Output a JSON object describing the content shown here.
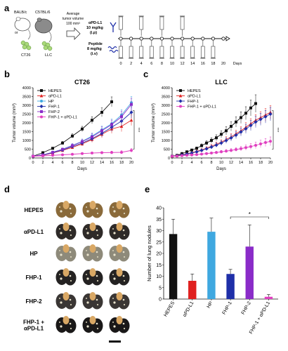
{
  "panel_labels": [
    "a",
    "b",
    "c",
    "d",
    "e"
  ],
  "schema": {
    "mouse_strain_1": "BALB/c",
    "or_text": "or",
    "mouse_strain_2": "C57BL/6",
    "cell_line_1": "CT26",
    "cell_line_2": "LLC",
    "avg_text_1": "Average",
    "avg_text_2": "tumor volume",
    "avg_text_3": "100 mm³",
    "antibody_label_1": "αPD-L1",
    "antibody_label_2": "10 mg/kg",
    "antibody_label_3": "(i.p)",
    "peptide_label_1": "Peptide",
    "peptide_label_2": "8 mg/kg",
    "peptide_label_3": "(i.v)",
    "timeline_ticks": [
      "0",
      "2",
      "4",
      "6",
      "8",
      "10",
      "12",
      "14",
      "16",
      "18",
      "20"
    ],
    "timeline_unit": "Days",
    "antibody_days": [
      0,
      4,
      8,
      12
    ],
    "peptide_days": [
      0,
      2,
      4,
      6,
      8,
      10,
      12,
      14,
      16,
      18
    ]
  },
  "chart_data": [
    {
      "type": "line",
      "title": "CT26",
      "xlabel": "Days",
      "ylabel": "Tumor volume (mm³)",
      "xlim": [
        0,
        20
      ],
      "ylim": [
        0,
        4000
      ],
      "xticks": [
        "0",
        "2",
        "4",
        "6",
        "8",
        "10",
        "12",
        "14",
        "16",
        "18",
        "20"
      ],
      "yticks": [
        "0",
        "500",
        "1000",
        "1500",
        "2000",
        "2500",
        "3000",
        "3500",
        "4000"
      ],
      "legend_position": "top-left",
      "significance": "***",
      "series": [
        {
          "name": "HEPES",
          "color": "#111111",
          "marker": "square",
          "x": [
            0,
            2,
            4,
            6,
            8,
            10,
            12,
            14,
            16
          ],
          "y": [
            100,
            300,
            550,
            850,
            1250,
            1650,
            2150,
            2600,
            3200
          ],
          "err": [
            20,
            40,
            60,
            90,
            120,
            150,
            200,
            250,
            280
          ]
        },
        {
          "name": "αPD-L1",
          "color": "#e0201f",
          "marker": "triangle",
          "x": [
            0,
            2,
            4,
            6,
            8,
            10,
            12,
            14,
            16,
            18,
            20
          ],
          "y": [
            100,
            150,
            280,
            430,
            600,
            800,
            1050,
            1350,
            1650,
            1800,
            2150
          ],
          "err": [
            20,
            30,
            40,
            60,
            80,
            120,
            160,
            200,
            250,
            300,
            300
          ]
        },
        {
          "name": "HP",
          "color": "#3fa8e0",
          "marker": "circle",
          "x": [
            0,
            2,
            4,
            6,
            8,
            10,
            12,
            14,
            16,
            18,
            20
          ],
          "y": [
            100,
            180,
            330,
            500,
            720,
            950,
            1250,
            1600,
            1950,
            2450,
            3150
          ],
          "err": [
            20,
            30,
            50,
            70,
            100,
            130,
            170,
            210,
            260,
            300,
            350
          ]
        },
        {
          "name": "FHP-1",
          "color": "#1f2fa8",
          "marker": "diamond",
          "x": [
            0,
            2,
            4,
            6,
            8,
            10,
            12,
            14,
            16,
            18,
            20
          ],
          "y": [
            100,
            160,
            300,
            450,
            650,
            850,
            1100,
            1400,
            1750,
            2100,
            2600
          ],
          "err": [
            20,
            30,
            40,
            60,
            90,
            120,
            160,
            200,
            240,
            280,
            320
          ]
        },
        {
          "name": "FHP-2",
          "color": "#8a2cc8",
          "marker": "square",
          "x": [
            0,
            2,
            4,
            6,
            8,
            10,
            12,
            14,
            16,
            18,
            20
          ],
          "y": [
            100,
            170,
            320,
            490,
            700,
            930,
            1200,
            1550,
            1900,
            2350,
            3050
          ],
          "err": [
            20,
            30,
            50,
            70,
            100,
            140,
            180,
            220,
            260,
            300,
            350
          ]
        },
        {
          "name": "FHP-1 + αPD-L1",
          "color": "#e040c0",
          "marker": "circle",
          "x": [
            0,
            2,
            4,
            6,
            8,
            10,
            12,
            14,
            16,
            18,
            20
          ],
          "y": [
            100,
            120,
            150,
            180,
            210,
            250,
            280,
            300,
            310,
            320,
            430
          ],
          "err": [
            20,
            20,
            25,
            30,
            40,
            50,
            60,
            70,
            80,
            90,
            110
          ]
        }
      ]
    },
    {
      "type": "line",
      "title": "LLC",
      "xlabel": "Days",
      "ylabel": "Tumor volume (mm³)",
      "xlim": [
        0,
        20
      ],
      "ylim": [
        0,
        4000
      ],
      "xticks": [
        "0",
        "2",
        "4",
        "6",
        "8",
        "10",
        "12",
        "14",
        "16",
        "18",
        "20"
      ],
      "yticks": [
        "0",
        "500",
        "1000",
        "1500",
        "2000",
        "2500",
        "3000",
        "3500",
        "4000"
      ],
      "legend_position": "top-left",
      "significance": "***",
      "series": [
        {
          "name": "HEPES",
          "color": "#111111",
          "marker": "square",
          "x": [
            0,
            1,
            2,
            3,
            4,
            5,
            6,
            7,
            8,
            9,
            10,
            11,
            12,
            13,
            14,
            15,
            16,
            17
          ],
          "y": [
            100,
            150,
            250,
            350,
            450,
            550,
            700,
            850,
            1000,
            1150,
            1350,
            1550,
            1800,
            2050,
            2300,
            2550,
            2850,
            3100
          ],
          "err": [
            20,
            30,
            40,
            50,
            60,
            80,
            100,
            120,
            150,
            170,
            200,
            230,
            260,
            290,
            330,
            370,
            450,
            500
          ]
        },
        {
          "name": "αPD-L1",
          "color": "#e0201f",
          "marker": "triangle",
          "x": [
            0,
            1,
            2,
            3,
            4,
            5,
            6,
            7,
            8,
            9,
            10,
            11,
            12,
            13,
            14,
            15,
            16,
            17,
            18,
            19,
            20
          ],
          "y": [
            100,
            130,
            180,
            240,
            300,
            380,
            460,
            560,
            670,
            780,
            900,
            1050,
            1200,
            1380,
            1550,
            1750,
            1950,
            2150,
            2300,
            2450,
            2600
          ],
          "err": [
            20,
            25,
            30,
            40,
            50,
            60,
            70,
            80,
            100,
            120,
            140,
            160,
            180,
            200,
            230,
            260,
            290,
            320,
            340,
            360,
            380
          ]
        },
        {
          "name": "FHP-1",
          "color": "#1f2fa8",
          "marker": "diamond",
          "x": [
            0,
            1,
            2,
            3,
            4,
            5,
            6,
            7,
            8,
            9,
            10,
            11,
            12,
            13,
            14,
            15,
            16,
            17,
            18,
            19,
            20
          ],
          "y": [
            100,
            120,
            170,
            220,
            280,
            350,
            430,
            520,
            620,
            730,
            850,
            990,
            1140,
            1300,
            1480,
            1660,
            1850,
            2050,
            2200,
            2350,
            2500
          ],
          "err": [
            20,
            25,
            30,
            40,
            50,
            60,
            70,
            80,
            100,
            120,
            140,
            160,
            180,
            200,
            230,
            260,
            290,
            320,
            340,
            360,
            380
          ]
        },
        {
          "name": "FHP-1 + αPD-L1",
          "color": "#e040c0",
          "marker": "circle",
          "x": [
            0,
            1,
            2,
            3,
            4,
            5,
            6,
            7,
            8,
            9,
            10,
            11,
            12,
            13,
            14,
            15,
            16,
            17,
            18,
            19,
            20
          ],
          "y": [
            100,
            110,
            130,
            150,
            170,
            190,
            220,
            250,
            280,
            310,
            350,
            390,
            430,
            480,
            530,
            590,
            650,
            720,
            800,
            880,
            950
          ],
          "err": [
            20,
            20,
            25,
            30,
            35,
            40,
            45,
            50,
            60,
            70,
            80,
            90,
            100,
            110,
            130,
            150,
            170,
            190,
            210,
            230,
            250
          ]
        }
      ]
    },
    {
      "type": "bar",
      "xlabel": "",
      "ylabel": "Number of lung nodules",
      "ylim": [
        0,
        40
      ],
      "yticks": [
        "0",
        "5",
        "10",
        "15",
        "20",
        "25",
        "30",
        "35",
        "40"
      ],
      "categories": [
        "HEPES",
        "αPD-L1",
        "HP",
        "FHP-1",
        "FHP-2",
        "FHP-1 + αPD-L1"
      ],
      "values": [
        28.5,
        8,
        29.5,
        11,
        23,
        1
      ],
      "errors": [
        6.5,
        3,
        6,
        2,
        9.5,
        1
      ],
      "colors": [
        "#111111",
        "#e0201f",
        "#3fa8e0",
        "#1f2fa8",
        "#8a2cc8",
        "#e040c0"
      ],
      "significance": "*"
    }
  ],
  "lung_panel": {
    "row_labels": [
      "HEPES",
      "αPD-L1",
      "HP",
      "FHP-1",
      "FHP-2",
      "FHP-1 +\nαPD-L1"
    ],
    "lung_colors": [
      "#8a6a3a",
      "#2e2a28",
      "#8e8a7a",
      "#242222",
      "#3a3634",
      "#1a1818"
    ]
  }
}
